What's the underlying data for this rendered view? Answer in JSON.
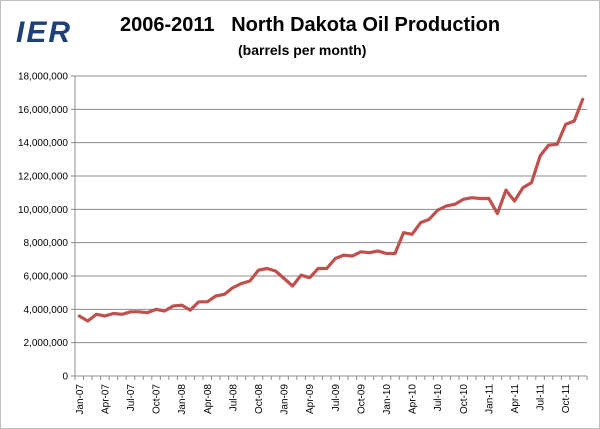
{
  "logo": {
    "text": "IER"
  },
  "chart_data": {
    "type": "line",
    "title": "2006-2011   North Dakota Oil Production",
    "subtitle": "(barrels per month)",
    "xlabel": "",
    "ylabel": "",
    "ylim": [
      0,
      18000000
    ],
    "yticks": [
      0,
      2000000,
      4000000,
      6000000,
      8000000,
      10000000,
      12000000,
      14000000,
      16000000,
      18000000
    ],
    "ytick_labels": [
      "0",
      "2,000,000",
      "4,000,000",
      "6,000,000",
      "8,000,000",
      "10,000,000",
      "12,000,000",
      "14,000,000",
      "16,000,000",
      "18,000,000"
    ],
    "xtick_labels": [
      "Jan-07",
      "Apr-07",
      "Jul-07",
      "Oct-07",
      "Jan-08",
      "Apr-08",
      "Jul-08",
      "Oct-08",
      "Jan-09",
      "Apr-09",
      "Jul-09",
      "Oct-09",
      "Jan-10",
      "Apr-10",
      "Jul-10",
      "Oct-10",
      "Jan-11",
      "Apr-11",
      "Jul-11",
      "Oct-11"
    ],
    "grid": true,
    "legend": "none",
    "series_color": "#c0504d",
    "x": [
      "Jan-07",
      "Feb-07",
      "Mar-07",
      "Apr-07",
      "May-07",
      "Jun-07",
      "Jul-07",
      "Aug-07",
      "Sep-07",
      "Oct-07",
      "Nov-07",
      "Dec-07",
      "Jan-08",
      "Feb-08",
      "Mar-08",
      "Apr-08",
      "May-08",
      "Jun-08",
      "Jul-08",
      "Aug-08",
      "Sep-08",
      "Oct-08",
      "Nov-08",
      "Dec-08",
      "Jan-09",
      "Feb-09",
      "Mar-09",
      "Apr-09",
      "May-09",
      "Jun-09",
      "Jul-09",
      "Aug-09",
      "Sep-09",
      "Oct-09",
      "Nov-09",
      "Dec-09",
      "Jan-10",
      "Feb-10",
      "Mar-10",
      "Apr-10",
      "May-10",
      "Jun-10",
      "Jul-10",
      "Aug-10",
      "Sep-10",
      "Oct-10",
      "Nov-10",
      "Dec-10",
      "Jan-11",
      "Feb-11",
      "Mar-11",
      "Apr-11",
      "May-11",
      "Jun-11",
      "Jul-11",
      "Aug-11",
      "Sep-11",
      "Oct-11",
      "Nov-11",
      "Dec-11"
    ],
    "series": [
      {
        "values": [
          3600000,
          3300000,
          3700000,
          3600000,
          3750000,
          3700000,
          3850000,
          3850000,
          3800000,
          4000000,
          3900000,
          4200000,
          4250000,
          3950000,
          4450000,
          4450000,
          4800000,
          4900000,
          5300000,
          5550000,
          5700000,
          6350000,
          6450000,
          6300000,
          5850000,
          5400000,
          6050000,
          5900000,
          6450000,
          6450000,
          7050000,
          7250000,
          7200000,
          7450000,
          7400000,
          7500000,
          7350000,
          7350000,
          8600000,
          8500000,
          9200000,
          9400000,
          9950000,
          10200000,
          10300000,
          10600000,
          10700000,
          10650000,
          10650000,
          9750000,
          11150000,
          10500000,
          11300000,
          11600000,
          13200000,
          13850000,
          13900000,
          15100000,
          15300000,
          16600000
        ]
      }
    ]
  }
}
